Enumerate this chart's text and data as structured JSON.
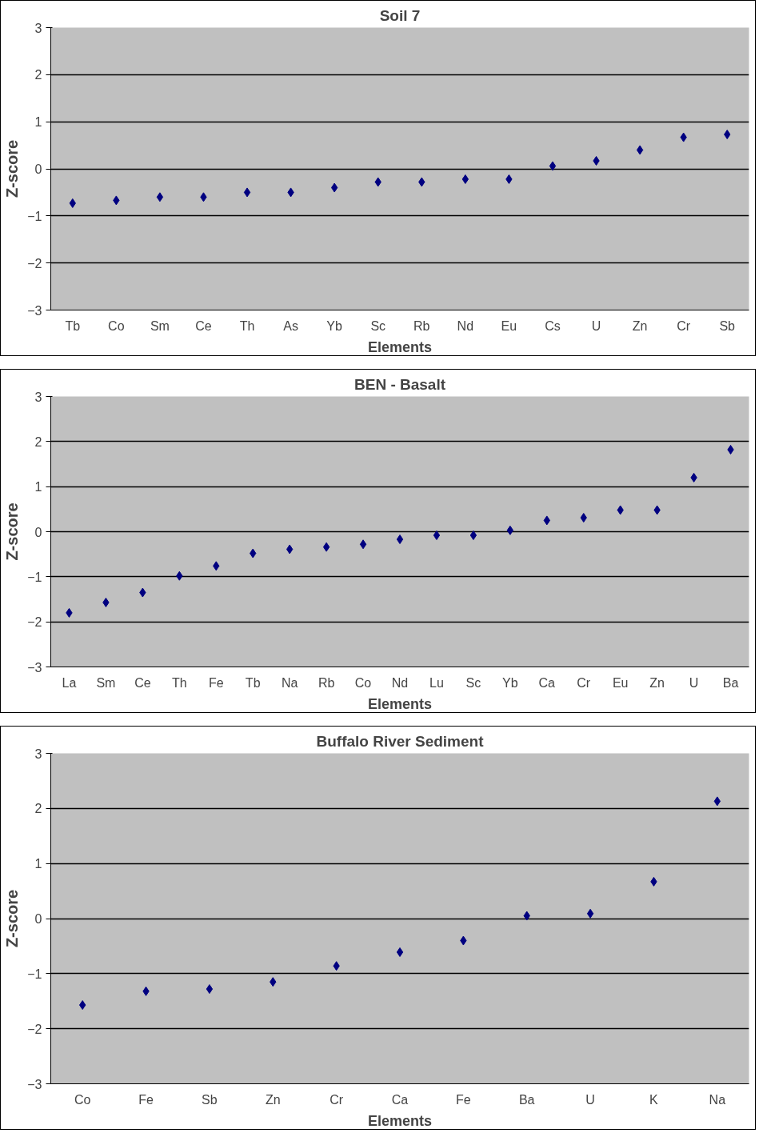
{
  "chart_data": [
    {
      "type": "scatter",
      "title": "Soil 7",
      "xlabel": "Elements",
      "ylabel": "Z-score",
      "categories": [
        "Tb",
        "Co",
        "Sm",
        "Ce",
        "Th",
        "As",
        "Yb",
        "Sc",
        "Rb",
        "Nd",
        "Eu",
        "Cs",
        "U",
        "Zn",
        "Cr",
        "Sb"
      ],
      "values": [
        -0.73,
        -0.67,
        -0.6,
        -0.6,
        -0.5,
        -0.5,
        -0.4,
        -0.28,
        -0.28,
        -0.22,
        -0.22,
        0.06,
        0.17,
        0.4,
        0.67,
        0.73
      ],
      "color": "#000080",
      "marker": "diamond",
      "ylim": [
        -3,
        3
      ],
      "yticks": [
        -3,
        -2,
        -1,
        0,
        1,
        2,
        3
      ],
      "grid": "y"
    },
    {
      "type": "scatter",
      "title": "BEN - Basalt",
      "xlabel": "Elements",
      "ylabel": "Z-score",
      "categories": [
        "La",
        "Sm",
        "Ce",
        "Th",
        "Fe",
        "Tb",
        "Na",
        "Rb",
        "Co",
        "Nd",
        "Lu",
        "Sc",
        "Yb",
        "Ca",
        "Cr",
        "Eu",
        "Zn",
        "U",
        "Ba"
      ],
      "values": [
        -1.8,
        -1.57,
        -1.35,
        -0.98,
        -0.76,
        -0.48,
        -0.39,
        -0.34,
        -0.28,
        -0.17,
        -0.08,
        -0.08,
        0.03,
        0.25,
        0.31,
        0.48,
        0.48,
        1.2,
        1.82
      ],
      "color": "#000080",
      "marker": "diamond",
      "ylim": [
        -3,
        3
      ],
      "yticks": [
        -3,
        -2,
        -1,
        0,
        1,
        2,
        3
      ],
      "grid": "y"
    },
    {
      "type": "scatter",
      "title": "Buffalo River Sediment",
      "xlabel": "Elements",
      "ylabel": "Z-score",
      "categories": [
        "Co",
        "Fe",
        "Sb",
        "Zn",
        "Cr",
        "Ca",
        "Fe",
        "Ba",
        "U",
        "K",
        "Na"
      ],
      "values": [
        -1.57,
        -1.32,
        -1.28,
        -1.15,
        -0.86,
        -0.61,
        -0.4,
        0.05,
        0.09,
        0.67,
        2.13
      ],
      "color": "#000080",
      "marker": "diamond",
      "ylim": [
        -3,
        3
      ],
      "yticks": [
        -3,
        -2,
        -1,
        0,
        1,
        2,
        3
      ],
      "grid": "y"
    }
  ]
}
